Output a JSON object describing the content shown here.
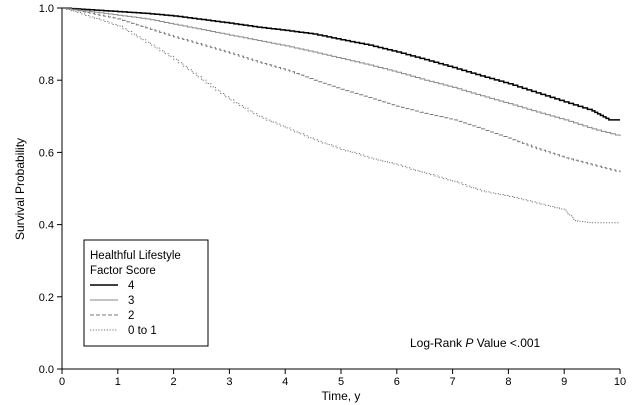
{
  "chart_data": {
    "type": "line",
    "xlabel": "Time, y",
    "ylabel": "Survival Probability",
    "xlim": [
      0,
      10
    ],
    "ylim": [
      0,
      1.0
    ],
    "xticks": [
      "0",
      "1",
      "2",
      "3",
      "4",
      "5",
      "6",
      "7",
      "8",
      "9",
      "10"
    ],
    "yticks": [
      "0.0",
      "0.2",
      "0.4",
      "0.6",
      "0.8",
      "1.0"
    ],
    "grid": false,
    "legend": {
      "title_line1": "Healthful Lifestyle",
      "title_line2": "Factor Score",
      "placement": "bottom-left"
    },
    "annotation": {
      "prefix": "Log-Rank ",
      "italic": "P",
      "suffix": " Value <.001"
    },
    "series": [
      {
        "name": "4",
        "color": "#000000",
        "style": "solid",
        "x": [
          0,
          0.5,
          1,
          1.5,
          2,
          2.5,
          3,
          3.5,
          4,
          4.5,
          5,
          5.5,
          6,
          6.5,
          7,
          7.5,
          8,
          8.5,
          9,
          9.5,
          9.8,
          10
        ],
        "y": [
          1.0,
          0.995,
          0.99,
          0.985,
          0.978,
          0.968,
          0.958,
          0.947,
          0.938,
          0.928,
          0.912,
          0.897,
          0.878,
          0.857,
          0.835,
          0.812,
          0.79,
          0.765,
          0.74,
          0.715,
          0.69,
          0.69
        ]
      },
      {
        "name": "3",
        "color": "#888888",
        "style": "solid",
        "x": [
          0,
          0.5,
          1,
          1.5,
          2,
          2.5,
          3,
          3.5,
          4,
          4.5,
          5,
          5.5,
          6,
          6.5,
          7,
          7.5,
          8,
          8.5,
          9,
          9.5,
          10
        ],
        "y": [
          1.0,
          0.99,
          0.98,
          0.97,
          0.955,
          0.94,
          0.925,
          0.91,
          0.895,
          0.878,
          0.86,
          0.842,
          0.822,
          0.8,
          0.78,
          0.757,
          0.735,
          0.712,
          0.69,
          0.665,
          0.645
        ]
      },
      {
        "name": "2",
        "color": "#777777",
        "style": "dashed",
        "x": [
          0,
          0.5,
          1,
          1.5,
          2,
          2.5,
          3,
          3.5,
          4,
          4.5,
          5,
          5.5,
          6,
          6.5,
          7,
          7.5,
          8,
          8.5,
          9,
          9.5,
          10
        ],
        "y": [
          1.0,
          0.985,
          0.97,
          0.945,
          0.92,
          0.898,
          0.875,
          0.85,
          0.828,
          0.8,
          0.775,
          0.752,
          0.728,
          0.708,
          0.69,
          0.665,
          0.64,
          0.61,
          0.585,
          0.565,
          0.545
        ]
      },
      {
        "name": "0 to 1",
        "color": "#777777",
        "style": "dotted",
        "x": [
          0,
          0.5,
          1,
          1.5,
          2,
          2.5,
          3,
          3.5,
          4,
          4.5,
          5,
          5.5,
          6,
          6.5,
          7,
          7.5,
          8,
          8.5,
          9,
          9.2,
          9.5,
          10
        ],
        "y": [
          1.0,
          0.975,
          0.95,
          0.905,
          0.858,
          0.8,
          0.745,
          0.7,
          0.668,
          0.635,
          0.608,
          0.585,
          0.565,
          0.542,
          0.52,
          0.493,
          0.478,
          0.46,
          0.44,
          0.41,
          0.405,
          0.405
        ]
      }
    ]
  }
}
